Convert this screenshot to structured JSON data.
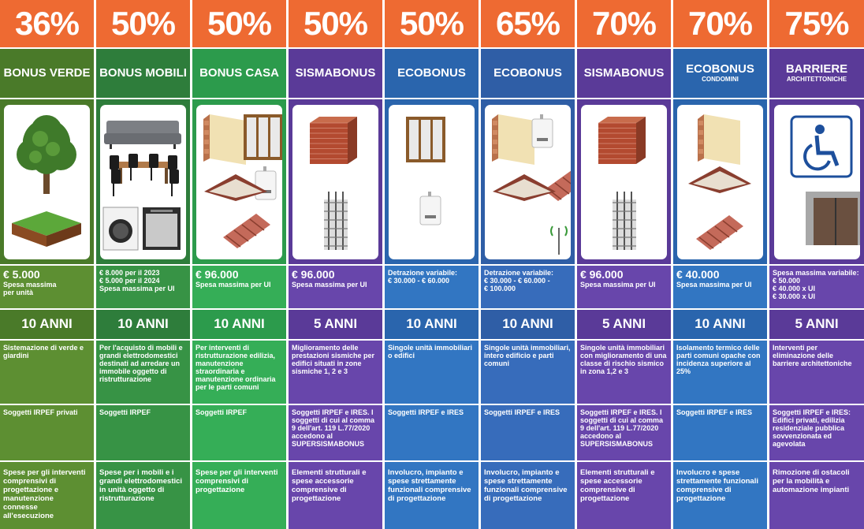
{
  "columns": [
    {
      "percent": "36%",
      "title": "BONUS VERDE",
      "subtitle": "",
      "amount_big": "€ 5.000",
      "amount_lines": [
        "Spesa massima",
        "per unità"
      ],
      "years": "10 ANNI",
      "description": "Sistemazione di verde e giardini",
      "subjects": "Soggetti IRPEF privati",
      "expenses": "Spese per gli interventi comprensivi di progettazione e manutenzione connesse all'esecuzione",
      "color_dark": "#4a7a29",
      "color_light": "#5d8f32",
      "images": [
        "tree-icon",
        "grass-icon"
      ]
    },
    {
      "percent": "50%",
      "title": "BONUS MOBILI",
      "subtitle": "",
      "amount_big": "",
      "amount_lines": [
        "€ 8.000 per il 2023",
        "€ 5.000 per il 2024",
        "Spesa massima per UI"
      ],
      "years": "10 ANNI",
      "description": "Per l'acquisto di mobili e grandi elettrodomestici destinati ad arredare un immobile oggetto di ristrutturazione",
      "subjects": "Soggetti IRPEF",
      "expenses": "Spese per i mobili e i grandi elettrodomestici in unità oggetto di ristrutturazione",
      "color_dark": "#2e7d3b",
      "color_light": "#379345",
      "images": [
        "sofa-icon",
        "dining-table-icon",
        "washing-machine-icon",
        "dishwasher-icon"
      ]
    },
    {
      "percent": "50%",
      "title": "BONUS CASA",
      "subtitle": "",
      "amount_big": "€ 96.000",
      "amount_lines": [
        "Spesa massima per UI"
      ],
      "years": "10 ANNI",
      "description": "Per interventi di ristrutturazione edilizia, manutenzione straordinaria e manutenzione ordinaria per le parti comuni",
      "subjects": "Soggetti IRPEF",
      "expenses": "Spese per gli interventi comprensivi di progettazione",
      "color_dark": "#2c9b4c",
      "color_light": "#35ae57",
      "images": [
        "wall-insulation-icon",
        "window-icon",
        "boiler-icon",
        "ceiling-icon",
        "roof-icon"
      ]
    },
    {
      "percent": "50%",
      "title": "SISMABONUS",
      "subtitle": "",
      "amount_big": "€ 96.000",
      "amount_lines": [
        "Spesa massima per UI"
      ],
      "years": "5 ANNI",
      "description": "Miglioramento delle prestazioni sismiche per edifici situati in zone sismiche 1, 2 e 3",
      "subjects": "Soggetti IRPEF e IRES. I soggetti di cui al comma 9 dell'art. 119 L.77/2020 accedono al SUPERSISMABONUS",
      "expenses": "Elementi strutturali e spese accessorie comprensive di progettazione",
      "color_dark": "#5a3a98",
      "color_light": "#6846ab",
      "images": [
        "brick-wall-icon",
        "rebar-column-icon"
      ]
    },
    {
      "percent": "50%",
      "title": "ECOBONUS",
      "subtitle": "",
      "amount_big": "",
      "amount_lines": [
        "Detrazione variabile:",
        "€ 30.000 - € 60.000"
      ],
      "years": "10 ANNI",
      "description": "Singole unità immobiliari o edifici",
      "subjects": "Soggetti IRPEF e IRES",
      "expenses": "Involucro, impianto e spese strettamente funzionali comprensive di progettazione",
      "color_dark": "#2a65ad",
      "color_light": "#3276c2",
      "images": [
        "window-icon",
        "boiler-icon"
      ]
    },
    {
      "percent": "65%",
      "title": "ECOBONUS",
      "subtitle": "",
      "amount_big": "",
      "amount_lines": [
        "Detrazione variabile:",
        "€ 30.000 - € 60.000 -",
        "€ 100.000"
      ],
      "years": "10 ANNI",
      "description": "Singole unità immobiliari, intero edificio e parti comuni",
      "subjects": "Soggetti IRPEF e IRES",
      "expenses": "Involucro, impianto e spese strettamente funzionali comprensive di progettazione",
      "color_dark": "#2f5ea6",
      "color_light": "#376cbb",
      "images": [
        "wall-insulation-icon",
        "boiler-icon",
        "roof-icon",
        "ceiling-icon",
        "antenna-icon"
      ]
    },
    {
      "percent": "70%",
      "title": "SISMABONUS",
      "subtitle": "",
      "amount_big": "€ 96.000",
      "amount_lines": [
        "Spesa massima per UI"
      ],
      "years": "5 ANNI",
      "description": "Singole unità immobiliari con miglioramento di una classe di rischio sismico in zona 1,2 e 3",
      "subjects": "Soggetti IRPEF e IRES. I soggetti di cui al comma 9 dell'art. 119 L.77/2020 accedono al SUPERSISMABONUS",
      "expenses": "Elementi strutturali e spese accessorie comprensive di progettazione",
      "color_dark": "#5a3a98",
      "color_light": "#6846ab",
      "images": [
        "brick-wall-icon",
        "rebar-column-icon"
      ]
    },
    {
      "percent": "70%",
      "title": "ECOBONUS",
      "subtitle": "CONDOMINI",
      "amount_big": "€ 40.000",
      "amount_lines": [
        "Spesa massima per UI"
      ],
      "years": "10 ANNI",
      "description": "Isolamento termico delle parti comuni opache con incidenza superiore al 25%",
      "subjects": "Soggetti IRPEF e IRES",
      "expenses": "Involucro e spese strettamente funzionali comprensive di progettazione",
      "color_dark": "#2a65ad",
      "color_light": "#3276c2",
      "images": [
        "wall-insulation-icon",
        "ceiling-icon",
        "roof-icon"
      ]
    },
    {
      "percent": "75%",
      "title": "BARRIERE",
      "subtitle": "ARCHITETTONICHE",
      "amount_big": "",
      "amount_lines": [
        "Spesa massima variabile:",
        "€ 50.000",
        "€ 40.000 x UI",
        "€ 30.000 x UI"
      ],
      "years": "5 ANNI",
      "description": "Interventi per eliminazione delle barriere architettoniche",
      "subjects": "Soggetti IRPEF e IRES: Edifici privati, edilizia residenziale pubblica sovvenzionata ed agevolata",
      "expenses": "Rimozione di ostacoli per la mobilità e automazione impianti",
      "color_dark": "#5a3a98",
      "color_light": "#6846ab",
      "images": [
        "wheelchair-icon",
        "elevator-icon"
      ]
    }
  ]
}
